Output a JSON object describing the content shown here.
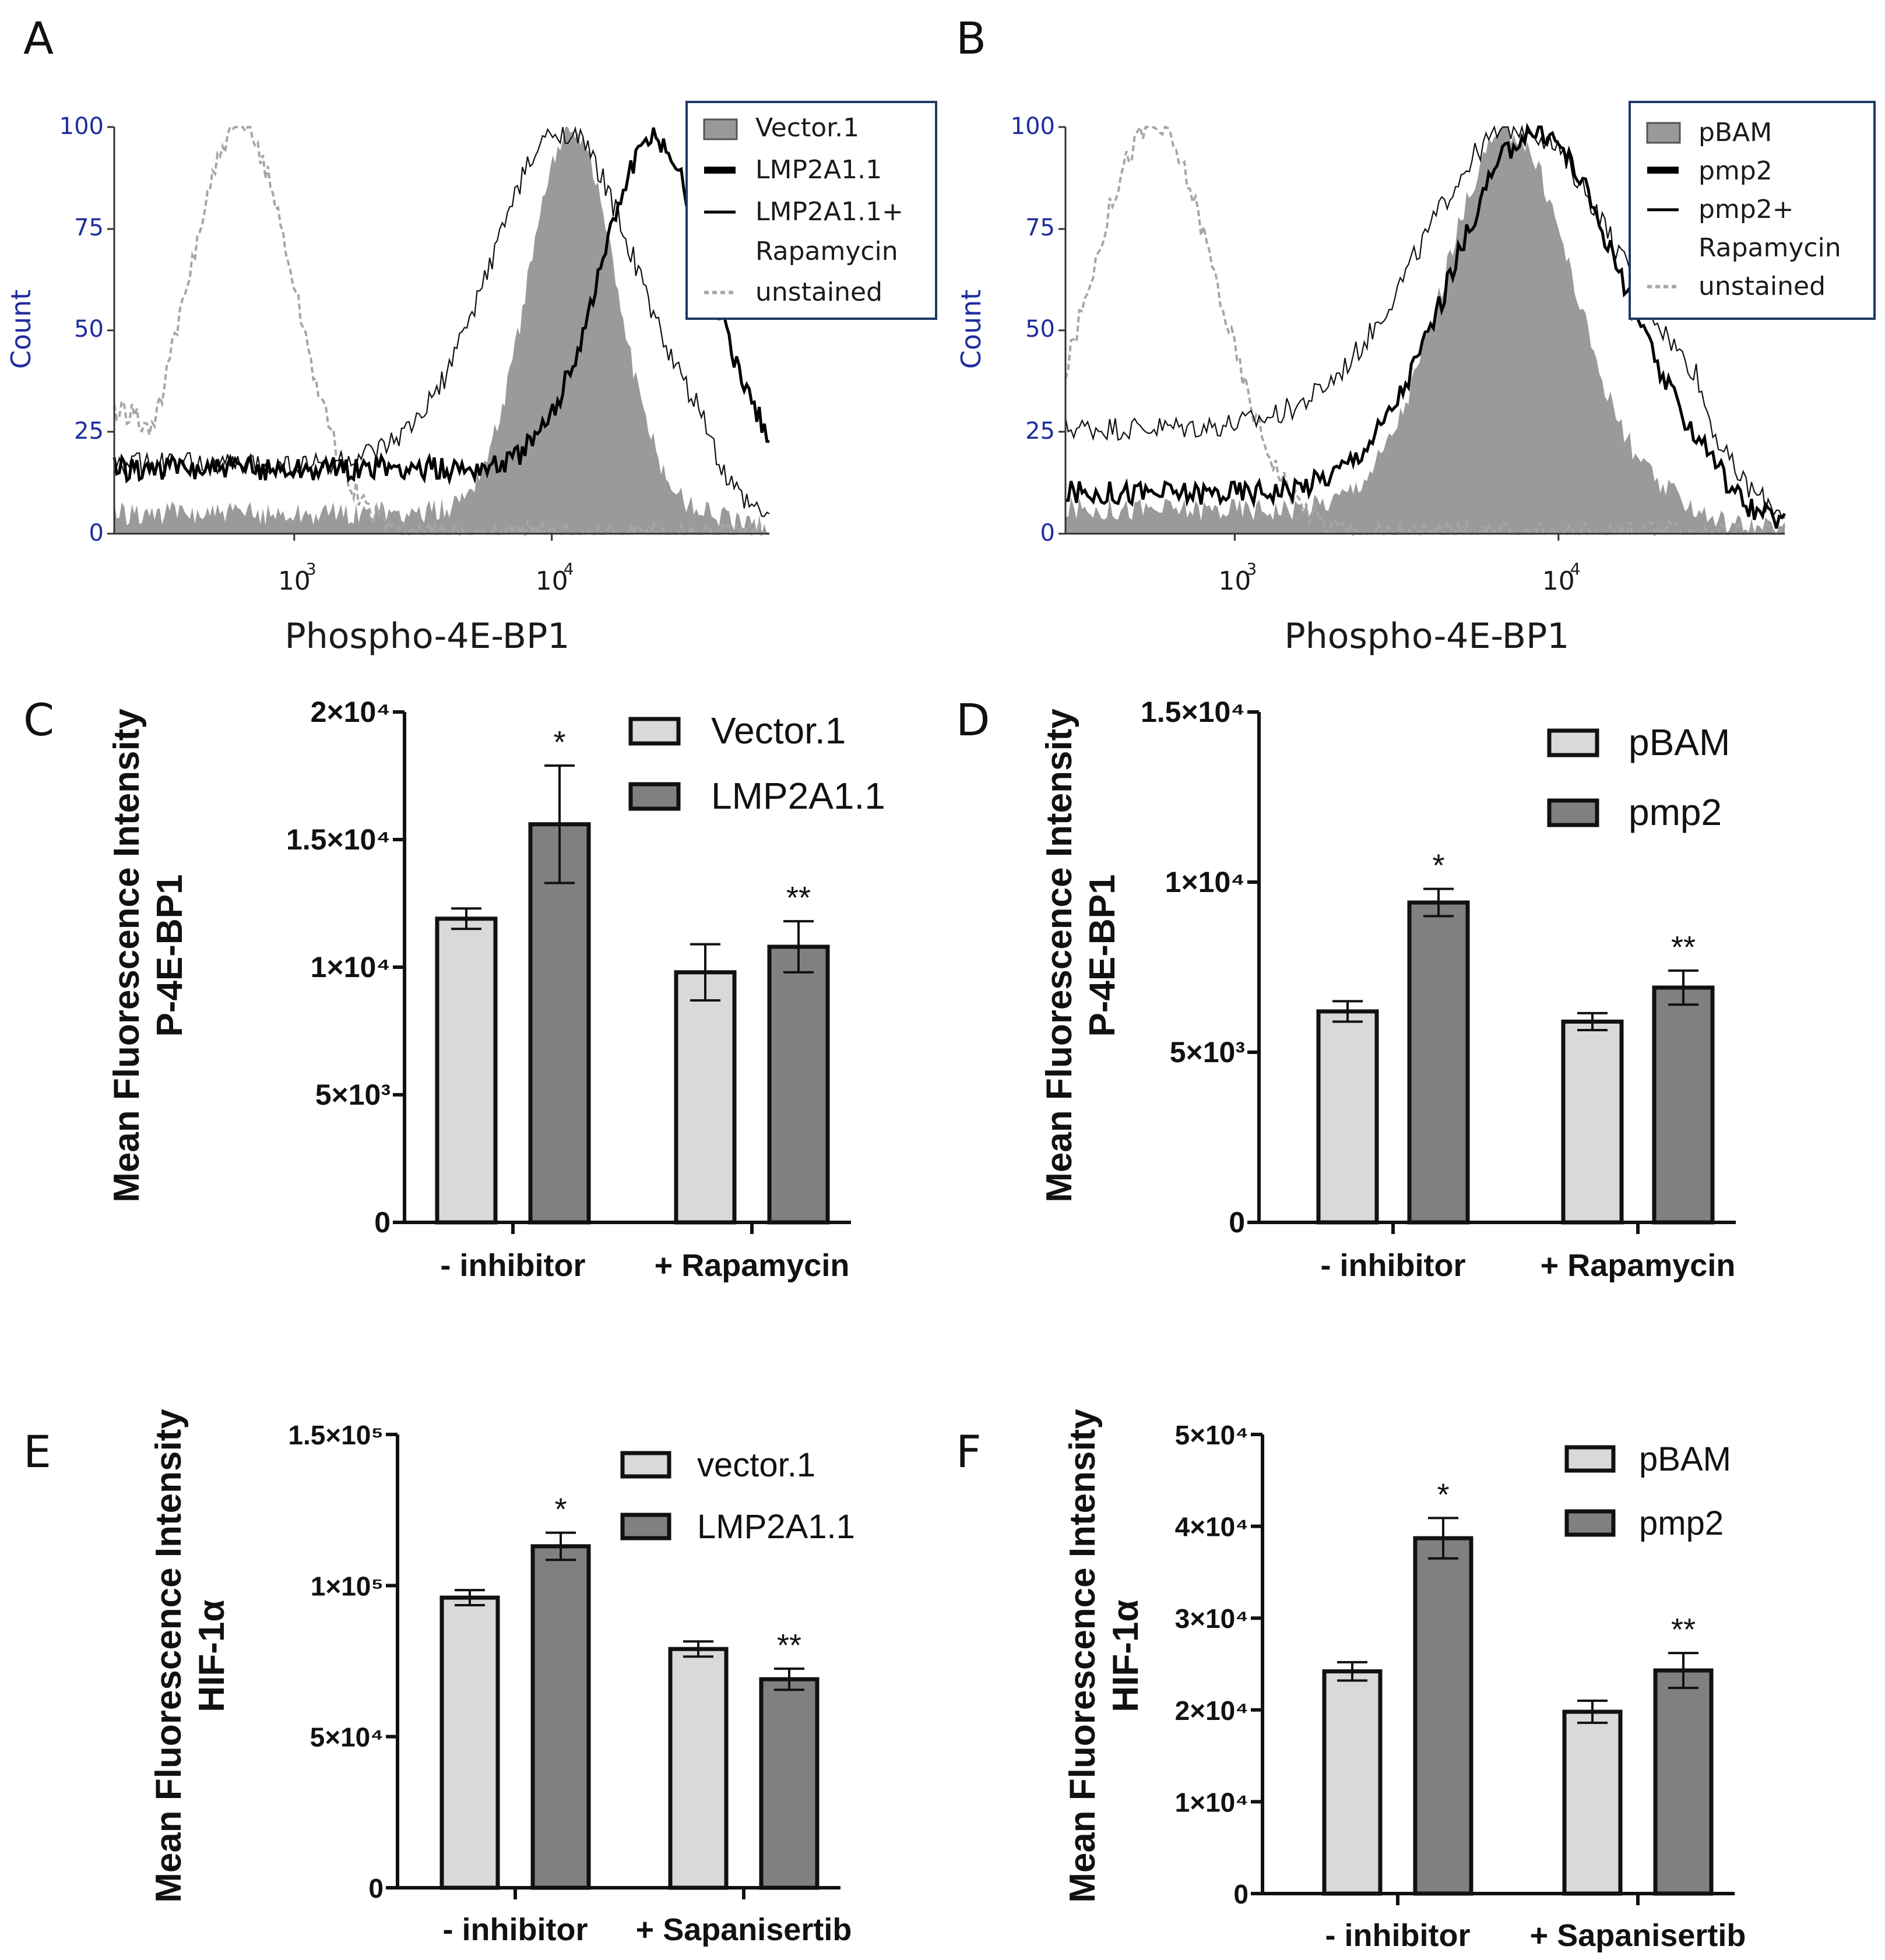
{
  "figure": {
    "panel_letters": [
      "A",
      "B",
      "C",
      "D",
      "E",
      "F"
    ]
  },
  "chart_data": [
    {
      "panel": "A",
      "type": "area",
      "subtype": "flow-cytometry-histogram",
      "xlabel": "Phospho-4E-BP1",
      "ylabel": "Count",
      "x_scale": "log",
      "y_ticks": [
        "0",
        "25",
        "50",
        "75",
        "100"
      ],
      "x_ticks": [
        {
          "base": "10",
          "exp": "3"
        },
        {
          "base": "10",
          "exp": "4"
        }
      ],
      "ylim": [
        0,
        100
      ],
      "xlim": [
        200,
        70000
      ],
      "legend": [
        "Vector.1",
        "LMP2A1.1",
        "LMP2A1.1+",
        "Rapamycin",
        "unstained"
      ],
      "series": [
        {
          "name": "Vector.1",
          "style": "filled-gray",
          "peak": 12000,
          "sigma": 0.17,
          "baseline": 5,
          "height": 100
        },
        {
          "name": "LMP2A1.1",
          "style": "thick-black",
          "peak": 25000,
          "sigma": 0.21,
          "baseline": 16,
          "height": 97
        },
        {
          "name": "LMP2A1.1+ Rapamycin",
          "style": "thin-black",
          "peak": 11000,
          "sigma": 0.28,
          "baseline": 17,
          "height": 99
        },
        {
          "name": "unstained",
          "style": "dashed-gray",
          "peak": 620,
          "sigma": 0.21,
          "baseline": 0,
          "height": 100
        }
      ]
    },
    {
      "panel": "B",
      "type": "area",
      "subtype": "flow-cytometry-histogram",
      "xlabel": "Phospho-4E-BP1",
      "ylabel": "Count",
      "x_scale": "log",
      "y_ticks": [
        "0",
        "25",
        "50",
        "75",
        "100"
      ],
      "x_ticks": [
        {
          "base": "10",
          "exp": "3"
        },
        {
          "base": "10",
          "exp": "4"
        }
      ],
      "ylim": [
        0,
        100
      ],
      "xlim": [
        300,
        50000
      ],
      "legend": [
        "pBAM",
        "pmp2",
        "pmp2+",
        "Rapamycin",
        "unstained"
      ],
      "series": [
        {
          "name": "pBAM",
          "style": "filled-gray",
          "peak": 7000,
          "sigma": 0.2,
          "baseline": 6,
          "height": 99
        },
        {
          "name": "pmp2",
          "style": "thick-black",
          "peak": 8500,
          "sigma": 0.26,
          "baseline": 10,
          "height": 99
        },
        {
          "name": "pmp2+ Rapamycin",
          "style": "thin-black",
          "peak": 7500,
          "sigma": 0.3,
          "baseline": 26,
          "height": 100
        },
        {
          "name": "unstained",
          "style": "dashed-gray",
          "peak": 560,
          "sigma": 0.2,
          "baseline": 0,
          "height": 100
        }
      ]
    },
    {
      "panel": "C",
      "type": "bar",
      "ylabel_line1": "Mean Fluorescence Intensity",
      "ylabel_line2": "P-4E-BP1",
      "categories": [
        "- inhibitor",
        "+ Rapamycin"
      ],
      "ylim": [
        0,
        20000
      ],
      "y_ticks": [
        {
          "value": 0,
          "label": "0"
        },
        {
          "value": 5000,
          "label": "5×10³"
        },
        {
          "value": 10000,
          "label": "1×10⁴"
        },
        {
          "value": 15000,
          "label": "1.5×10⁴"
        },
        {
          "value": 20000,
          "label": "2×10⁴"
        }
      ],
      "series": [
        {
          "name": "Vector.1",
          "color": "#d9d9d9",
          "values": [
            11900,
            9800
          ],
          "errors": [
            400,
            1100
          ]
        },
        {
          "name": "LMP2A1.1",
          "color": "#808080",
          "values": [
            15600,
            10800
          ],
          "errors": [
            2300,
            1000
          ]
        }
      ],
      "significance": [
        {
          "category": 0,
          "series": 1,
          "label": "*"
        },
        {
          "category": 1,
          "series": 1,
          "label": "**"
        }
      ]
    },
    {
      "panel": "D",
      "type": "bar",
      "ylabel_line1": "Mean Fluorescence Intensity",
      "ylabel_line2": "P-4E-BP1",
      "categories": [
        "- inhibitor",
        "+ Rapamycin"
      ],
      "ylim": [
        0,
        15000
      ],
      "y_ticks": [
        {
          "value": 0,
          "label": "0"
        },
        {
          "value": 5000,
          "label": "5×10³"
        },
        {
          "value": 10000,
          "label": "1×10⁴"
        },
        {
          "value": 15000,
          "label": "1.5×10⁴"
        }
      ],
      "series": [
        {
          "name": "pBAM",
          "color": "#d9d9d9",
          "values": [
            6200,
            5900
          ],
          "errors": [
            300,
            250
          ]
        },
        {
          "name": "pmp2",
          "color": "#808080",
          "values": [
            9400,
            6900
          ],
          "errors": [
            400,
            500
          ]
        }
      ],
      "significance": [
        {
          "category": 0,
          "series": 1,
          "label": "*"
        },
        {
          "category": 1,
          "series": 1,
          "label": "**"
        }
      ]
    },
    {
      "panel": "E",
      "type": "bar",
      "ylabel_line1": "Mean Fluorescence Intensity",
      "ylabel_line2": "HIF-1α",
      "categories": [
        "- inhibitor",
        "+ Sapanisertib"
      ],
      "ylim": [
        0,
        150000
      ],
      "y_ticks": [
        {
          "value": 0,
          "label": "0"
        },
        {
          "value": 50000,
          "label": "5×10⁴"
        },
        {
          "value": 100000,
          "label": "1×10⁵"
        },
        {
          "value": 150000,
          "label": "1.5×10⁵"
        }
      ],
      "series": [
        {
          "name": "vector.1",
          "color": "#d9d9d9",
          "values": [
            96000,
            79000
          ],
          "errors": [
            2500,
            2500
          ]
        },
        {
          "name": "LMP2A1.1",
          "color": "#808080",
          "values": [
            113000,
            69000
          ],
          "errors": [
            4500,
            3500
          ]
        }
      ],
      "significance": [
        {
          "category": 0,
          "series": 1,
          "label": "*"
        },
        {
          "category": 1,
          "series": 1,
          "label": "**"
        }
      ]
    },
    {
      "panel": "F",
      "type": "bar",
      "ylabel_line1": "Mean Fluorescence Intensity",
      "ylabel_line2": "HIF-1α",
      "categories": [
        "- inhibitor",
        "+ Sapanisertib"
      ],
      "ylim": [
        0,
        50000
      ],
      "y_ticks": [
        {
          "value": 0,
          "label": "0"
        },
        {
          "value": 10000,
          "label": "1×10⁴"
        },
        {
          "value": 20000,
          "label": "2×10⁴"
        },
        {
          "value": 30000,
          "label": "3×10⁴"
        },
        {
          "value": 40000,
          "label": "4×10⁴"
        },
        {
          "value": 50000,
          "label": "5×10⁴"
        }
      ],
      "series": [
        {
          "name": "pBAM",
          "color": "#d9d9d9",
          "values": [
            24200,
            19800
          ],
          "errors": [
            1000,
            1200
          ]
        },
        {
          "name": "pmp2",
          "color": "#808080",
          "values": [
            38700,
            24300
          ],
          "errors": [
            2200,
            1900
          ]
        }
      ],
      "significance": [
        {
          "category": 0,
          "series": 1,
          "label": "*"
        },
        {
          "category": 1,
          "series": 1,
          "label": "**"
        }
      ]
    }
  ]
}
